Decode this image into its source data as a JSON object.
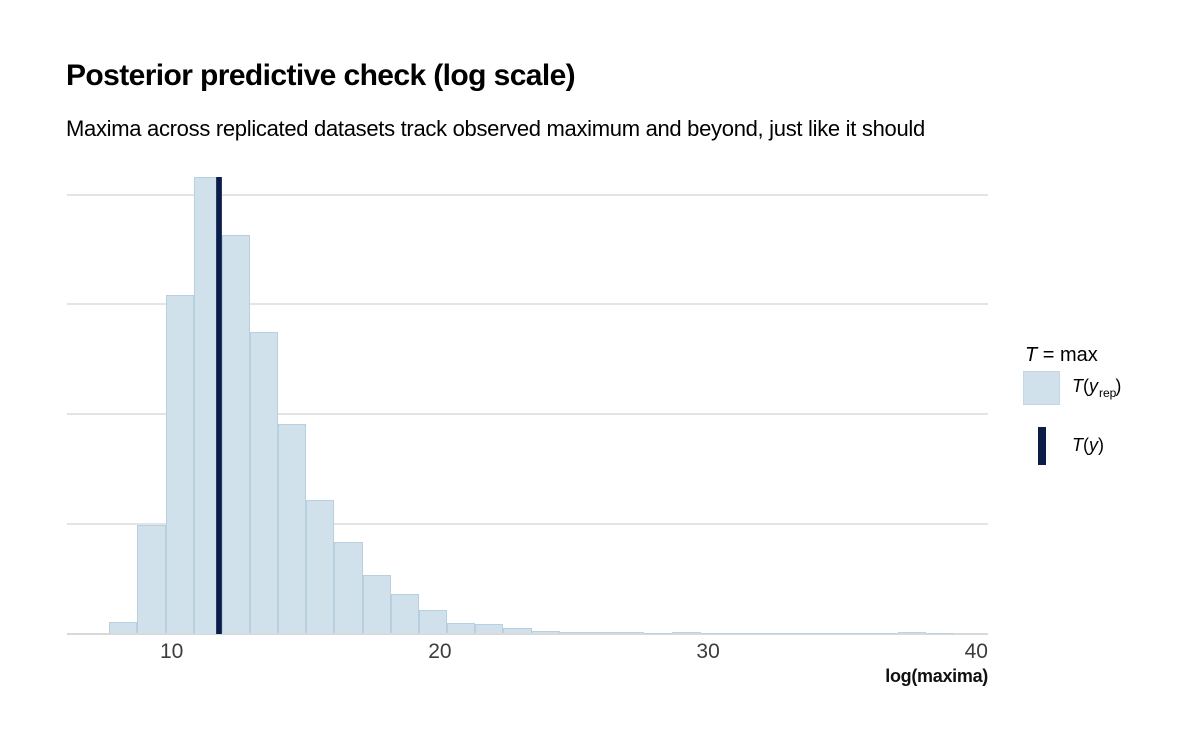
{
  "header": {
    "title": "Posterior predictive check (log scale)",
    "subtitle": "Maxima across replicated datasets track observed maximum and beyond, just like it should"
  },
  "legend": {
    "title_t": "T",
    "title_rest": " = max",
    "items": [
      {
        "t": "T",
        "open": "(",
        "y": "y",
        "sub": "rep",
        "close": ")"
      },
      {
        "t": "T",
        "open": "(",
        "y": "y",
        "sub": "",
        "close": ")"
      }
    ]
  },
  "chart_data": {
    "type": "bar",
    "subtype": "histogram",
    "title": "Posterior predictive check (log scale)",
    "subtitle": "Maxima across replicated datasets track observed maximum and beyond, just like it should",
    "xlabel": "log(maxima)",
    "ylabel": "",
    "x_ticks": [
      10,
      20,
      30,
      40
    ],
    "x_tick_labels": [
      "10",
      "20",
      "30",
      "40"
    ],
    "x_range": [
      6.1,
      40.4
    ],
    "y_axis_labeled": false,
    "grid": "horizontal-only",
    "y_gridlines_relative": [
      0.24,
      0.48,
      0.72,
      0.96
    ],
    "bin_start": 7.67,
    "bin_width": 1.05,
    "bar_heights_relative": [
      0.026,
      0.237,
      0.741,
      1.0,
      0.872,
      0.659,
      0.458,
      0.293,
      0.201,
      0.129,
      0.086,
      0.051,
      0.024,
      0.021,
      0.011,
      0.006,
      0.004,
      0.004,
      0.003,
      0.002,
      0.003,
      0.002,
      0.001,
      0.001,
      0.001,
      0.001,
      0.001,
      0.001,
      0.003,
      0.002
    ],
    "observed_stat_x": 11.77,
    "legend": {
      "position": "right",
      "title": "T = max",
      "entries": [
        "T(y rep)",
        "T(y)"
      ]
    },
    "colors": {
      "bar_fill": "#d1e1ec",
      "bar_border": "#b8cfdd",
      "observed_line": "#0a1c47",
      "gridline": "#e4e4e4",
      "axis_line": "#d9d9d9",
      "tick_label": "#3c3c3c",
      "background": "#ffffff"
    }
  }
}
